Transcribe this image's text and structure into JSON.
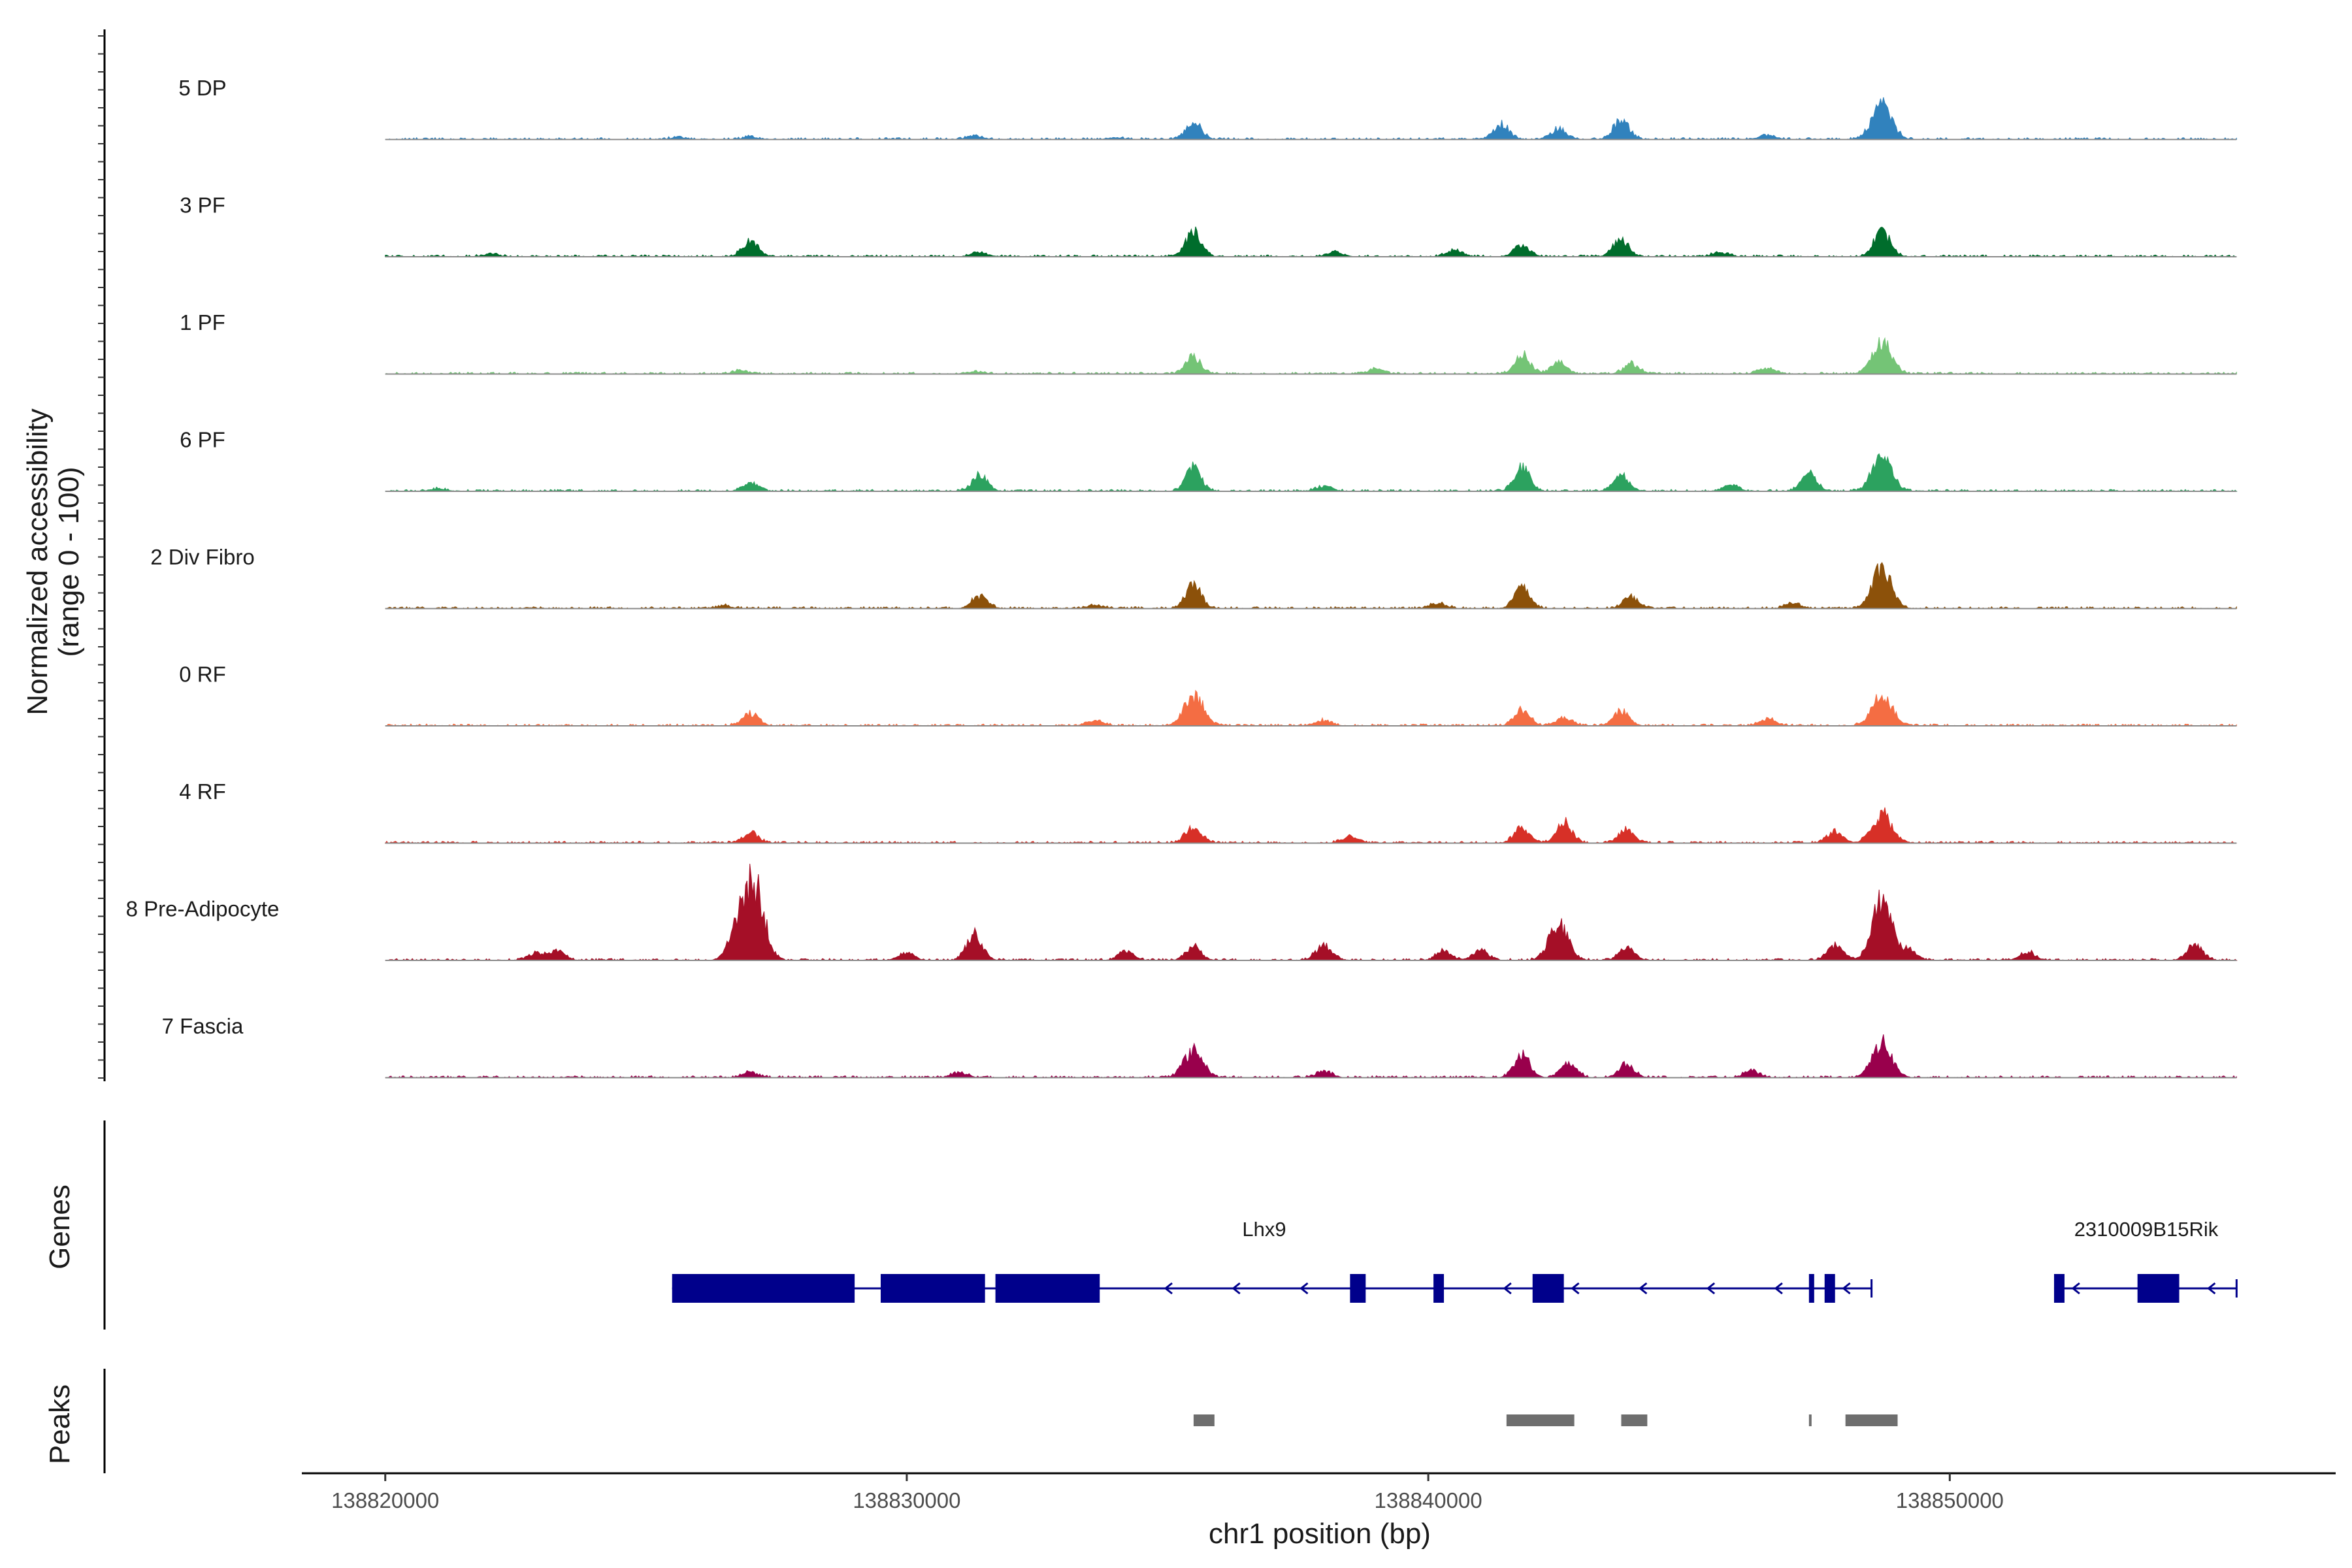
{
  "chart_data": {
    "type": "area",
    "title": "",
    "chromosome": "chr1",
    "xlabel": "chr1 position (bp)",
    "ylabel_line1": "Normalized accessibility",
    "ylabel_line2": "(range 0 - 100)",
    "y_range": [
      0,
      100
    ],
    "xlim": [
      138818400,
      138857400
    ],
    "x_ticks": [
      138820000,
      138830000,
      138840000,
      138850000
    ],
    "x_tick_labels": [
      "138820000",
      "138830000",
      "138840000",
      "138850000"
    ],
    "data_extent": [
      138820000,
      138855500
    ],
    "tracks": [
      {
        "name": "5 DP",
        "color": "#3182bd",
        "peaks": [
          [
            138835500,
            20
          ],
          [
            138841400,
            18
          ],
          [
            138842500,
            12
          ],
          [
            138843700,
            23
          ],
          [
            138848700,
            40
          ],
          [
            138846500,
            5
          ],
          [
            138827000,
            3
          ],
          [
            138831300,
            4
          ],
          [
            138825600,
            2
          ],
          [
            138834000,
            2
          ]
        ]
      },
      {
        "name": "3 PF",
        "color": "#006d2c",
        "peaks": [
          [
            138827000,
            18
          ],
          [
            138835500,
            30
          ],
          [
            138841800,
            14
          ],
          [
            138843700,
            20
          ],
          [
            138848700,
            30
          ],
          [
            138831400,
            5
          ],
          [
            138838200,
            6
          ],
          [
            138845600,
            5
          ],
          [
            138840500,
            8
          ],
          [
            138822000,
            3
          ]
        ]
      },
      {
        "name": "1 PF",
        "color": "#74c476",
        "peaks": [
          [
            138835500,
            20
          ],
          [
            138841800,
            22
          ],
          [
            138842500,
            14
          ],
          [
            138843900,
            12
          ],
          [
            138848700,
            37
          ],
          [
            138846500,
            7
          ],
          [
            138839000,
            6
          ],
          [
            138826800,
            4
          ],
          [
            138831300,
            3
          ]
        ]
      },
      {
        "name": "6 PF",
        "color": "#2ca25f",
        "peaks": [
          [
            138827000,
            10
          ],
          [
            138831400,
            18
          ],
          [
            138835500,
            28
          ],
          [
            138841800,
            28
          ],
          [
            138843700,
            20
          ],
          [
            138848700,
            42
          ],
          [
            138847300,
            20
          ],
          [
            138821000,
            3
          ],
          [
            138845800,
            6
          ],
          [
            138838000,
            6
          ]
        ]
      },
      {
        "name": "2 Div Fibro",
        "color": "#8c510a",
        "peaks": [
          [
            138831400,
            14
          ],
          [
            138835500,
            28
          ],
          [
            138841800,
            24
          ],
          [
            138843900,
            14
          ],
          [
            138848700,
            46
          ],
          [
            138833600,
            4
          ],
          [
            138840200,
            6
          ],
          [
            138847000,
            6
          ],
          [
            138826500,
            3
          ]
        ]
      },
      {
        "name": "0 RF",
        "color": "#f46d43",
        "peaks": [
          [
            138827000,
            14
          ],
          [
            138833600,
            6
          ],
          [
            138835500,
            36
          ],
          [
            138841800,
            18
          ],
          [
            138842600,
            10
          ],
          [
            138843700,
            18
          ],
          [
            138846500,
            8
          ],
          [
            138848700,
            38
          ],
          [
            138838000,
            6
          ]
        ]
      },
      {
        "name": "4 RF",
        "color": "#d73027",
        "peaks": [
          [
            138827000,
            12
          ],
          [
            138835500,
            20
          ],
          [
            138841800,
            18
          ],
          [
            138842600,
            24
          ],
          [
            138843800,
            16
          ],
          [
            138848700,
            34
          ],
          [
            138838500,
            8
          ],
          [
            138847800,
            14
          ]
        ]
      },
      {
        "name": "8 Pre-Adipocyte",
        "color": "#a50f27",
        "peaks": [
          [
            138822900,
            8
          ],
          [
            138823300,
            10
          ],
          [
            138826800,
            40
          ],
          [
            138827100,
            80
          ],
          [
            138830000,
            8
          ],
          [
            138831300,
            30
          ],
          [
            138834200,
            10
          ],
          [
            138835500,
            16
          ],
          [
            138838000,
            18
          ],
          [
            138840300,
            10
          ],
          [
            138841000,
            12
          ],
          [
            138842500,
            42
          ],
          [
            138843800,
            14
          ],
          [
            138847800,
            18
          ],
          [
            138848700,
            70
          ],
          [
            138849200,
            12
          ],
          [
            138851500,
            10
          ],
          [
            138854700,
            18
          ]
        ]
      },
      {
        "name": "7 Fascia",
        "color": "#99004c",
        "peaks": [
          [
            138835500,
            32
          ],
          [
            138841800,
            28
          ],
          [
            138842700,
            16
          ],
          [
            138843800,
            16
          ],
          [
            138848700,
            40
          ],
          [
            138838000,
            8
          ],
          [
            138846200,
            8
          ],
          [
            138831000,
            6
          ],
          [
            138827000,
            6
          ]
        ]
      }
    ],
    "genes": [
      {
        "name": "Lhx9",
        "strand": "-",
        "start": 138825500,
        "end": 138848500,
        "exons": [
          [
            138825500,
            138829000
          ],
          [
            138829500,
            138831500
          ],
          [
            138831700,
            138833700
          ],
          [
            138838500,
            138838800
          ],
          [
            138840100,
            138840300
          ],
          [
            138842000,
            138842600
          ],
          [
            138847300,
            138847400
          ],
          [
            138847600,
            138847800
          ]
        ]
      },
      {
        "name": "2310009B15Rik",
        "strand": "-",
        "start": 138852000,
        "end": 138855500,
        "exons": [
          [
            138852000,
            138852200
          ],
          [
            138853600,
            138854400
          ]
        ]
      }
    ],
    "peaks_track": [
      [
        138835500,
        138835900
      ],
      [
        138841500,
        138842800
      ],
      [
        138843700,
        138844200
      ],
      [
        138847300,
        138847350
      ],
      [
        138848000,
        138849000
      ]
    ],
    "panel_labels": {
      "genes": "Genes",
      "peaks": "Peaks"
    }
  }
}
